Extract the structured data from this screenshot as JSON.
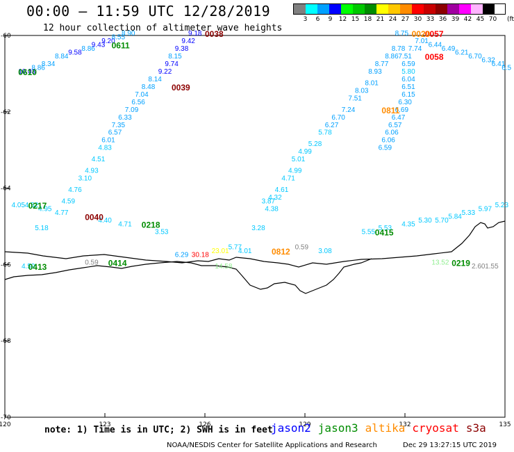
{
  "header": {
    "title": "00:00 – 11:59 UTC 12/28/2019",
    "subtitle": "12 hour collection of altimeter wave heights"
  },
  "legend": {
    "unit": "(ft)",
    "bins": [
      {
        "label": "3",
        "color": "#808080"
      },
      {
        "label": "6",
        "color": "#00ffff"
      },
      {
        "label": "9",
        "color": "#00a0ff"
      },
      {
        "label": "12",
        "color": "#0000ff"
      },
      {
        "label": "15",
        "color": "#00ff00"
      },
      {
        "label": "18",
        "color": "#00c800"
      },
      {
        "label": "21",
        "color": "#008c00"
      },
      {
        "label": "24",
        "color": "#ffff00"
      },
      {
        "label": "27",
        "color": "#ffc800"
      },
      {
        "label": "30",
        "color": "#ff8c00"
      },
      {
        "label": "33",
        "color": "#ff0000"
      },
      {
        "label": "36",
        "color": "#c80000"
      },
      {
        "label": "39",
        "color": "#8c0000"
      },
      {
        "label": "42",
        "color": "#a000a0"
      },
      {
        "label": "45",
        "color": "#ff00ff"
      },
      {
        "label": "70",
        "color": "#ffb4ff"
      },
      {
        "label": "",
        "color": "#000000"
      }
    ]
  },
  "chart_data": {
    "type": "scatter",
    "title": "00:00 – 11:59 UTC 12/28/2019",
    "subtitle": "12 hour collection of altimeter wave heights",
    "x_ticks": [
      "120",
      "123",
      "126",
      "129",
      "132",
      "135"
    ],
    "y_ticks": [
      "-60",
      "-62",
      "-64",
      "-66",
      "-68",
      "-70"
    ],
    "xlim": [
      120,
      135
    ],
    "ylim": [
      -70,
      -60
    ],
    "units": "ft",
    "track_labels": [
      {
        "text": "0610",
        "lon": 120.4,
        "lat": -61.0,
        "color": "#008c00"
      },
      {
        "text": "0611",
        "lon": 123.2,
        "lat": -60.3,
        "color": "#008c00"
      },
      {
        "text": "0038",
        "lon": 126.0,
        "lat": -60.0,
        "color": "#8c0000"
      },
      {
        "text": "0039",
        "lon": 125.0,
        "lat": -61.4,
        "color": "#8c0000"
      },
      {
        "text": "0217",
        "lon": 120.7,
        "lat": -64.5,
        "color": "#008c00"
      },
      {
        "text": "0040",
        "lon": 122.4,
        "lat": -64.8,
        "color": "#8c0000"
      },
      {
        "text": "0218",
        "lon": 124.1,
        "lat": -65.0,
        "color": "#008c00"
      },
      {
        "text": "0413",
        "lon": 120.7,
        "lat": -66.1,
        "color": "#008c00"
      },
      {
        "text": "0414",
        "lon": 123.1,
        "lat": -66.0,
        "color": "#008c00"
      },
      {
        "text": "0812",
        "lon": 128.0,
        "lat": -65.7,
        "color": "#ff8c00"
      },
      {
        "text": "0811",
        "lon": 131.3,
        "lat": -62.0,
        "color": "#ff8c00"
      },
      {
        "text": "0415",
        "lon": 131.1,
        "lat": -65.2,
        "color": "#008c00"
      },
      {
        "text": "0219",
        "lon": 133.4,
        "lat": -66.0,
        "color": "#008c00"
      },
      {
        "text": "0058",
        "lon": 132.6,
        "lat": -60.6,
        "color": "#ff0000"
      },
      {
        "text": "0057",
        "lon": 132.6,
        "lat": -60.0,
        "color": "#ff0000"
      },
      {
        "text": "0020",
        "lon": 132.2,
        "lat": -60.0,
        "color": "#ff8c00"
      }
    ],
    "values": [
      {
        "text": "10.03",
        "lon": 120.4,
        "lat": -61.0,
        "color": "#0000ff"
      },
      {
        "text": "8.86",
        "lon": 120.8,
        "lat": -60.9,
        "color": "#00a0ff"
      },
      {
        "text": "8.34",
        "lon": 121.1,
        "lat": -60.8,
        "color": "#00a0ff"
      },
      {
        "text": "8.84",
        "lon": 121.5,
        "lat": -60.6,
        "color": "#00a0ff"
      },
      {
        "text": "9.58",
        "lon": 121.9,
        "lat": -60.5,
        "color": "#0000ff"
      },
      {
        "text": "8.86",
        "lon": 122.3,
        "lat": -60.4,
        "color": "#00a0ff"
      },
      {
        "text": "9.43",
        "lon": 122.6,
        "lat": -60.3,
        "color": "#0000ff"
      },
      {
        "text": "9.20",
        "lon": 122.9,
        "lat": -60.2,
        "color": "#0000ff"
      },
      {
        "text": "8.55",
        "lon": 123.2,
        "lat": -60.1,
        "color": "#00a0ff"
      },
      {
        "text": "8.90",
        "lon": 123.5,
        "lat": -60.0,
        "color": "#00a0ff"
      },
      {
        "text": "9.18",
        "lon": 125.5,
        "lat": -60.0,
        "color": "#0000ff"
      },
      {
        "text": "9.42",
        "lon": 125.3,
        "lat": -60.2,
        "color": "#0000ff"
      },
      {
        "text": "9.38",
        "lon": 125.1,
        "lat": -60.4,
        "color": "#0000ff"
      },
      {
        "text": "8.15",
        "lon": 124.9,
        "lat": -60.6,
        "color": "#00a0ff"
      },
      {
        "text": "9.74",
        "lon": 124.8,
        "lat": -60.8,
        "color": "#0000ff"
      },
      {
        "text": "9.22",
        "lon": 124.6,
        "lat": -61.0,
        "color": "#0000ff"
      },
      {
        "text": "8.14",
        "lon": 124.3,
        "lat": -61.2,
        "color": "#00a0ff"
      },
      {
        "text": "8.48",
        "lon": 124.1,
        "lat": -61.4,
        "color": "#00a0ff"
      },
      {
        "text": "7.04",
        "lon": 123.9,
        "lat": -61.6,
        "color": "#00a0ff"
      },
      {
        "text": "6.56",
        "lon": 123.8,
        "lat": -61.8,
        "color": "#00a0ff"
      },
      {
        "text": "7.09",
        "lon": 123.6,
        "lat": -62.0,
        "color": "#00a0ff"
      },
      {
        "text": "6.33",
        "lon": 123.4,
        "lat": -62.2,
        "color": "#00a0ff"
      },
      {
        "text": "7.35",
        "lon": 123.2,
        "lat": -62.4,
        "color": "#00a0ff"
      },
      {
        "text": "6.57",
        "lon": 123.1,
        "lat": -62.6,
        "color": "#00a0ff"
      },
      {
        "text": "6.01",
        "lon": 122.9,
        "lat": -62.8,
        "color": "#00a0ff"
      },
      {
        "text": "4.83",
        "lon": 122.8,
        "lat": -63.0,
        "color": "#00c8ff"
      },
      {
        "text": "4.51",
        "lon": 122.6,
        "lat": -63.3,
        "color": "#00c8ff"
      },
      {
        "text": "4.93",
        "lon": 122.4,
        "lat": -63.6,
        "color": "#00c8ff"
      },
      {
        "text": "3.10",
        "lon": 122.2,
        "lat": -63.8,
        "color": "#00c8ff"
      },
      {
        "text": "4.76",
        "lon": 121.9,
        "lat": -64.1,
        "color": "#00c8ff"
      },
      {
        "text": "4.59",
        "lon": 121.7,
        "lat": -64.4,
        "color": "#00c8ff"
      },
      {
        "text": "4.05",
        "lon": 120.2,
        "lat": -64.5,
        "color": "#00c8ff"
      },
      {
        "text": "4.52",
        "lon": 120.6,
        "lat": -64.5,
        "color": "#00c8ff"
      },
      {
        "text": "4.95",
        "lon": 121.0,
        "lat": -64.6,
        "color": "#00c8ff"
      },
      {
        "text": "4.77",
        "lon": 121.5,
        "lat": -64.7,
        "color": "#00c8ff"
      },
      {
        "text": "5.18",
        "lon": 120.9,
        "lat": -65.1,
        "color": "#00c8ff"
      },
      {
        "text": "4.40",
        "lon": 122.8,
        "lat": -64.9,
        "color": "#00c8ff"
      },
      {
        "text": "4.71",
        "lon": 123.4,
        "lat": -65.0,
        "color": "#00c8ff"
      },
      {
        "text": "3.53",
        "lon": 124.5,
        "lat": -65.2,
        "color": "#00c8ff"
      },
      {
        "text": "4.59",
        "lon": 120.5,
        "lat": -66.1,
        "color": "#00c8ff"
      },
      {
        "text": "0.59",
        "lon": 122.4,
        "lat": -66.0,
        "color": "#808080"
      },
      {
        "text": "6.29",
        "lon": 125.1,
        "lat": -65.8,
        "color": "#00a0ff"
      },
      {
        "text": "30.18",
        "lon": 125.6,
        "lat": -65.8,
        "color": "#ff0000"
      },
      {
        "text": "23.01",
        "lon": 126.2,
        "lat": -65.7,
        "color": "#ffff00"
      },
      {
        "text": "5.77",
        "lon": 126.7,
        "lat": -65.6,
        "color": "#00c8ff"
      },
      {
        "text": "4.01",
        "lon": 127.0,
        "lat": -65.7,
        "color": "#00c8ff"
      },
      {
        "text": "14.58",
        "lon": 126.3,
        "lat": -66.1,
        "color": "#90ee90"
      },
      {
        "text": "0.59",
        "lon": 128.7,
        "lat": -65.6,
        "color": "#808080"
      },
      {
        "text": "3.08",
        "lon": 129.4,
        "lat": -65.7,
        "color": "#00c8ff"
      },
      {
        "text": "3.28",
        "lon": 127.4,
        "lat": -65.1,
        "color": "#00c8ff"
      },
      {
        "text": "3.87",
        "lon": 127.7,
        "lat": -64.4,
        "color": "#00c8ff"
      },
      {
        "text": "4.38",
        "lon": 127.8,
        "lat": -64.6,
        "color": "#00c8ff"
      },
      {
        "text": "4.32",
        "lon": 127.9,
        "lat": -64.3,
        "color": "#00c8ff"
      },
      {
        "text": "4.61",
        "lon": 128.1,
        "lat": -64.1,
        "color": "#00c8ff"
      },
      {
        "text": "4.71",
        "lon": 128.3,
        "lat": -63.8,
        "color": "#00c8ff"
      },
      {
        "text": "4.99",
        "lon": 128.5,
        "lat": -63.6,
        "color": "#00c8ff"
      },
      {
        "text": "5.01",
        "lon": 128.6,
        "lat": -63.3,
        "color": "#00c8ff"
      },
      {
        "text": "4.99",
        "lon": 128.8,
        "lat": -63.1,
        "color": "#00c8ff"
      },
      {
        "text": "5.28",
        "lon": 129.1,
        "lat": -62.9,
        "color": "#00c8ff"
      },
      {
        "text": "5.78",
        "lon": 129.4,
        "lat": -62.6,
        "color": "#00c8ff"
      },
      {
        "text": "6.27",
        "lon": 129.6,
        "lat": -62.4,
        "color": "#00a0ff"
      },
      {
        "text": "6.70",
        "lon": 129.8,
        "lat": -62.2,
        "color": "#00a0ff"
      },
      {
        "text": "7.24",
        "lon": 130.1,
        "lat": -62.0,
        "color": "#00a0ff"
      },
      {
        "text": "7.51",
        "lon": 130.3,
        "lat": -61.7,
        "color": "#00a0ff"
      },
      {
        "text": "8.03",
        "lon": 130.5,
        "lat": -61.5,
        "color": "#00a0ff"
      },
      {
        "text": "8.01",
        "lon": 130.8,
        "lat": -61.3,
        "color": "#00a0ff"
      },
      {
        "text": "8.93",
        "lon": 130.9,
        "lat": -61.0,
        "color": "#00a0ff"
      },
      {
        "text": "8.77",
        "lon": 131.1,
        "lat": -60.8,
        "color": "#00a0ff"
      },
      {
        "text": "8.86",
        "lon": 131.4,
        "lat": -60.6,
        "color": "#00a0ff"
      },
      {
        "text": "8.78",
        "lon": 131.6,
        "lat": -60.4,
        "color": "#00a0ff"
      },
      {
        "text": "8.75",
        "lon": 131.7,
        "lat": -60.0,
        "color": "#00a0ff"
      },
      {
        "text": "7.51",
        "lon": 131.8,
        "lat": -60.6,
        "color": "#00a0ff"
      },
      {
        "text": "6.59",
        "lon": 131.9,
        "lat": -60.8,
        "color": "#00a0ff"
      },
      {
        "text": "5.80",
        "lon": 131.9,
        "lat": -61.0,
        "color": "#00c8ff"
      },
      {
        "text": "6.04",
        "lon": 131.9,
        "lat": -61.2,
        "color": "#00a0ff"
      },
      {
        "text": "6.51",
        "lon": 131.9,
        "lat": -61.4,
        "color": "#00a0ff"
      },
      {
        "text": "6.15",
        "lon": 131.9,
        "lat": -61.6,
        "color": "#00a0ff"
      },
      {
        "text": "6.30",
        "lon": 131.8,
        "lat": -61.8,
        "color": "#00a0ff"
      },
      {
        "text": "6.69",
        "lon": 131.7,
        "lat": -62.0,
        "color": "#00a0ff"
      },
      {
        "text": "6.47",
        "lon": 131.6,
        "lat": -62.2,
        "color": "#00a0ff"
      },
      {
        "text": "6.57",
        "lon": 131.5,
        "lat": -62.4,
        "color": "#00a0ff"
      },
      {
        "text": "6.06",
        "lon": 131.4,
        "lat": -62.6,
        "color": "#00a0ff"
      },
      {
        "text": "6.06",
        "lon": 131.3,
        "lat": -62.8,
        "color": "#00a0ff"
      },
      {
        "text": "6.59",
        "lon": 131.2,
        "lat": -63.0,
        "color": "#00a0ff"
      },
      {
        "text": "7.74",
        "lon": 132.1,
        "lat": -60.4,
        "color": "#00a0ff"
      },
      {
        "text": "7.01",
        "lon": 132.3,
        "lat": -60.2,
        "color": "#00a0ff"
      },
      {
        "text": "6.44",
        "lon": 132.7,
        "lat": -60.3,
        "color": "#00a0ff"
      },
      {
        "text": "6.49",
        "lon": 133.1,
        "lat": -60.4,
        "color": "#00a0ff"
      },
      {
        "text": "6.21",
        "lon": 133.5,
        "lat": -60.5,
        "color": "#00a0ff"
      },
      {
        "text": "6.70",
        "lon": 133.9,
        "lat": -60.6,
        "color": "#00a0ff"
      },
      {
        "text": "6.32",
        "lon": 134.3,
        "lat": -60.7,
        "color": "#00a0ff"
      },
      {
        "text": "6.41",
        "lon": 134.6,
        "lat": -60.8,
        "color": "#00a0ff"
      },
      {
        "text": "6.5",
        "lon": 134.9,
        "lat": -60.9,
        "color": "#00a0ff"
      },
      {
        "text": "5.55",
        "lon": 130.7,
        "lat": -65.2,
        "color": "#00c8ff"
      },
      {
        "text": "5.53",
        "lon": 131.2,
        "lat": -65.1,
        "color": "#00c8ff"
      },
      {
        "text": "4.35",
        "lon": 131.9,
        "lat": -65.0,
        "color": "#00c8ff"
      },
      {
        "text": "5.30",
        "lon": 132.4,
        "lat": -64.9,
        "color": "#00c8ff"
      },
      {
        "text": "5.70",
        "lon": 132.9,
        "lat": -64.9,
        "color": "#00c8ff"
      },
      {
        "text": "5.84",
        "lon": 133.3,
        "lat": -64.8,
        "color": "#00c8ff"
      },
      {
        "text": "5.33",
        "lon": 133.7,
        "lat": -64.7,
        "color": "#00c8ff"
      },
      {
        "text": "5.97",
        "lon": 134.2,
        "lat": -64.6,
        "color": "#00c8ff"
      },
      {
        "text": "5.23",
        "lon": 134.7,
        "lat": -64.5,
        "color": "#00c8ff"
      },
      {
        "text": "13.52",
        "lon": 132.8,
        "lat": -66.0,
        "color": "#90ee90"
      },
      {
        "text": "2.60",
        "lon": 134.0,
        "lat": -66.1,
        "color": "#808080"
      },
      {
        "text": "1.55",
        "lon": 134.4,
        "lat": -66.1,
        "color": "#808080"
      }
    ]
  },
  "footer": {
    "note": "note: 1) Time is in UTC; 2) SWH is in feet",
    "satellites": [
      {
        "name": "jason2",
        "color": "#0000ff"
      },
      {
        "name": "jason3",
        "color": "#008c00"
      },
      {
        "name": "altika",
        "color": "#ff8c00"
      },
      {
        "name": "cryosat",
        "color": "#ff0000"
      },
      {
        "name": "s3a",
        "color": "#8c0000"
      }
    ],
    "credit": "NOAA/NESDIS Center for Satellite Applications and Research",
    "timestamp": "Dec 29 13:27:15 UTC 2019"
  }
}
